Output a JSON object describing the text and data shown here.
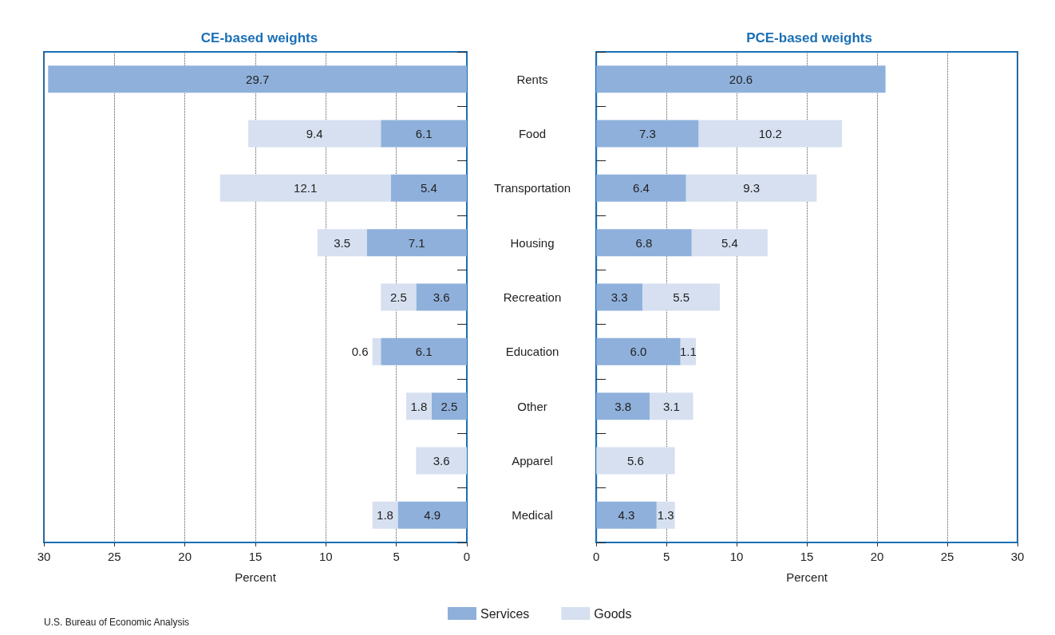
{
  "chart_data": [
    {
      "type": "bar",
      "orientation": "horizontal",
      "stacked": true,
      "title": "CE-based weights",
      "xlabel": "Percent",
      "categories": [
        "Rents",
        "Food",
        "Transportation",
        "Housing",
        "Recreation",
        "Education",
        "Other",
        "Apparel",
        "Medical"
      ],
      "series": [
        {
          "name": "Services",
          "color": "#8fb0db",
          "values": [
            29.7,
            6.1,
            5.4,
            7.1,
            3.6,
            6.1,
            2.5,
            null,
            4.9
          ]
        },
        {
          "name": "Goods",
          "color": "#d6e0f0",
          "values": [
            null,
            9.4,
            12.1,
            3.5,
            2.5,
            0.6,
            1.8,
            3.6,
            1.8
          ]
        }
      ],
      "xlim": [
        30,
        0
      ],
      "xticks": [
        0,
        5,
        10,
        15,
        20,
        25,
        30
      ],
      "grid": "x",
      "legend": "bottom",
      "data_labels": true,
      "annotations": [
        "U.S. Bureau of Economic Analysis"
      ]
    },
    {
      "type": "bar",
      "orientation": "horizontal",
      "stacked": true,
      "title": "PCE-based weights",
      "xlabel": "Percent",
      "categories": [
        null,
        null,
        null,
        null,
        null,
        null,
        null,
        null,
        null
      ],
      "series": [
        {
          "color": "#8fb0db",
          "values": [
            20.6,
            7.3,
            6.4,
            6.8,
            3.3,
            6.0,
            3.8,
            null,
            4.3
          ],
          "value_labels": [
            "20.6",
            "7.3",
            "6.4",
            "6.8",
            "3.3",
            "6.0",
            "3.8",
            null,
            "4.3"
          ]
        },
        {
          "color": "#d6e0f0",
          "values": [
            null,
            10.2,
            9.3,
            5.4,
            5.5,
            1.1,
            3.1,
            5.6,
            1.3
          ],
          "value_labels": [
            null,
            "10.2",
            "9.3",
            "5.4",
            "5.5",
            "1.1",
            "3.1",
            "5.6",
            "1.3"
          ]
        }
      ],
      "xlim": [
        0,
        30
      ],
      "xticks": [
        0,
        5,
        10,
        15,
        20,
        25,
        30
      ],
      "grid": "x",
      "tick_labels": "x"
    }
  ]
}
